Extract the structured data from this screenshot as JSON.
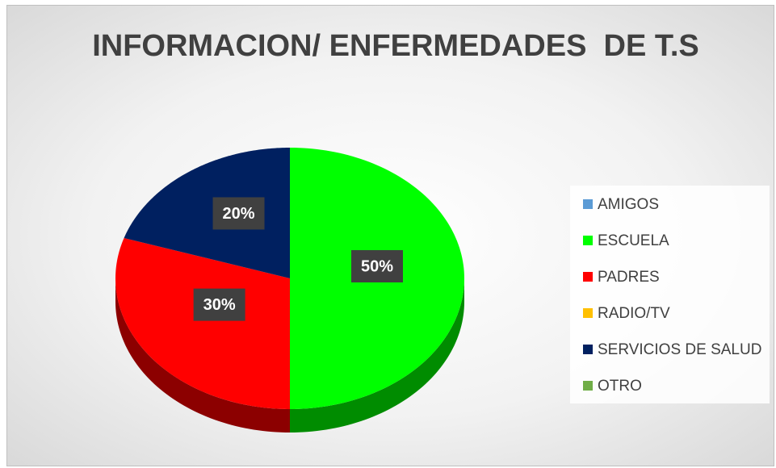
{
  "chart_data": {
    "type": "pie",
    "title": "INFORMACION/ ENFERMEDADES  DE T.S",
    "categories": [
      "AMIGOS",
      "ESCUELA",
      "PADRES",
      "RADIO/TV",
      "SERVICIOS DE SALUD",
      "OTRO"
    ],
    "values": [
      0,
      50,
      30,
      0,
      20,
      0
    ],
    "value_labels": [
      null,
      "50%",
      "30%",
      null,
      "20%",
      null
    ],
    "colors": [
      "#5b9bd5",
      "#00ff00",
      "#ff0000",
      "#ffc000",
      "#002060",
      "#70ad47"
    ],
    "legend": "right"
  }
}
